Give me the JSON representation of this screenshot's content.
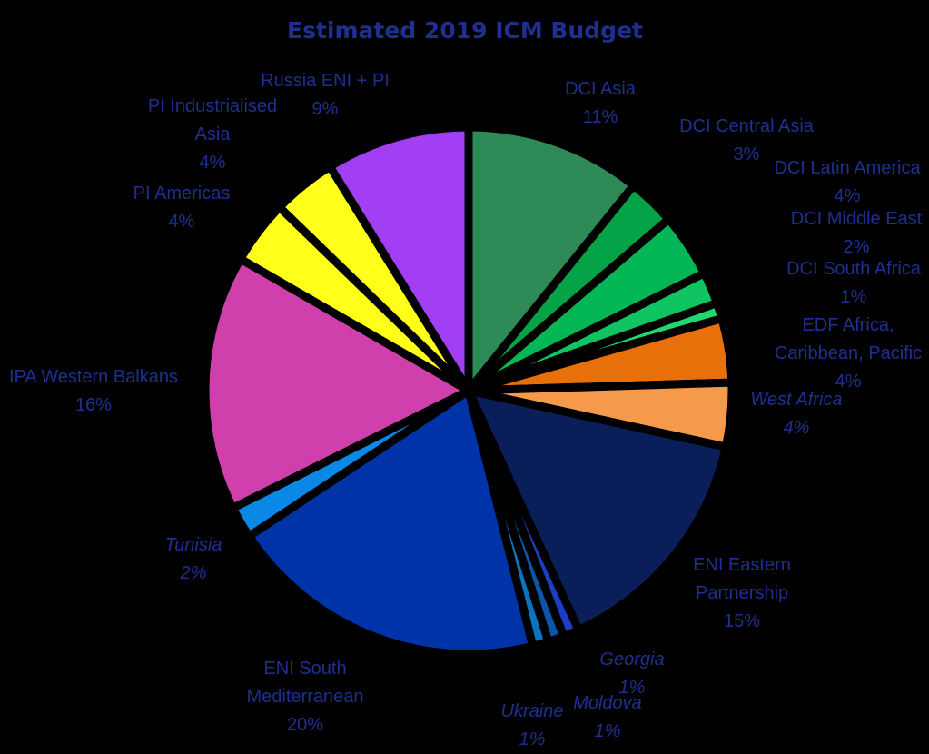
{
  "chart_data": {
    "type": "pie",
    "title": "Estimated 2019 ICM Budget",
    "unit": "%",
    "label_color": "#1f2f8f",
    "slices": [
      {
        "name": "DCI Asia",
        "value": 11,
        "label": "11%",
        "color": "#2e8b57"
      },
      {
        "name": "DCI Central Asia",
        "value": 3,
        "label": "3%",
        "color": "#05a347"
      },
      {
        "name": "DCI Latin America",
        "value": 4,
        "label": "4%",
        "color": "#03b656"
      },
      {
        "name": "DCI Middle East",
        "value": 2,
        "label": "2%",
        "color": "#10c462"
      },
      {
        "name": "DCI South Africa",
        "value": 1,
        "label": "1%",
        "color": "#20d86e"
      },
      {
        "name": "EDF Africa, Caribbean, Pacific",
        "value": 4,
        "label": "4%",
        "color": "#e8700a"
      },
      {
        "name": "West Africa",
        "value": 4,
        "label": "4%",
        "color": "#f59a4a",
        "italic": true
      },
      {
        "name": "ENI Eastern Partnership",
        "value": 15,
        "label": "15%",
        "color": "#0a1e5a"
      },
      {
        "name": "Georgia",
        "value": 1,
        "label": "1%",
        "color": "#1c3ec4",
        "italic": true
      },
      {
        "name": "Moldova",
        "value": 1,
        "label": "1%",
        "color": "#0b56a8",
        "italic": true
      },
      {
        "name": "Ukraine",
        "value": 1,
        "label": "1%",
        "color": "#0a74c0",
        "italic": true
      },
      {
        "name": "ENI South Mediterranean",
        "value": 20,
        "label": "20%",
        "color": "#0033a8"
      },
      {
        "name": "Tunisia",
        "value": 2,
        "label": "2%",
        "color": "#0a88e6",
        "italic": true
      },
      {
        "name": "IPA Western Balkans",
        "value": 16,
        "label": "16%",
        "color": "#cf40ad"
      },
      {
        "name": "PI Americas",
        "value": 4,
        "label": "4%",
        "color": "#ffff1a"
      },
      {
        "name": "PI Industrialised Asia",
        "value": 4,
        "label": "4%",
        "color": "#ffff1a"
      },
      {
        "name": "Russia ENI + PI",
        "value": 9,
        "label": "9%",
        "color": "#a23ff5"
      }
    ]
  }
}
